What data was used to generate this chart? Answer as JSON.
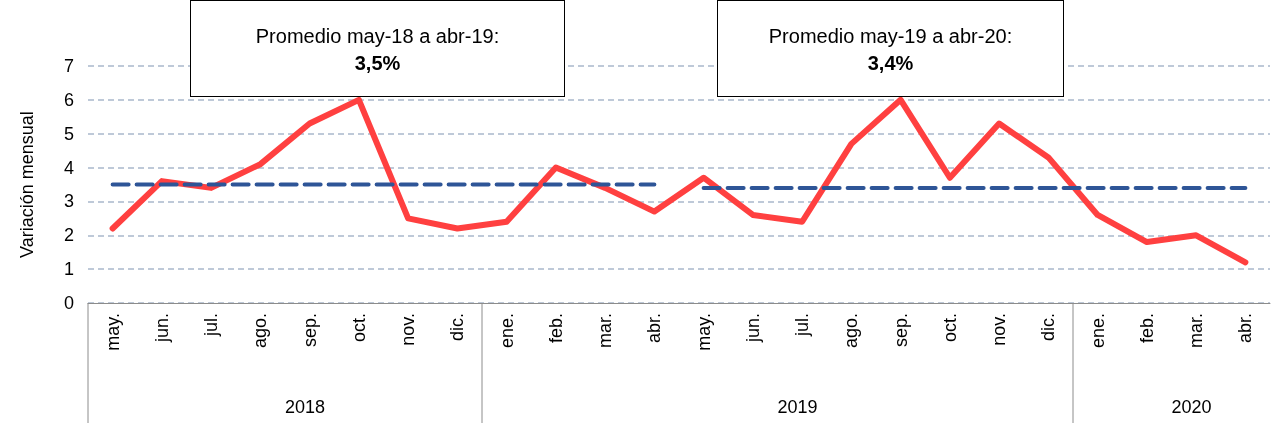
{
  "chart_data": {
    "type": "line",
    "ylabel": "Variación mensual",
    "categories": [
      "may.",
      "jun.",
      "jul.",
      "ago.",
      "sep.",
      "oct.",
      "nov.",
      "dic.",
      "ene.",
      "feb.",
      "mar.",
      "abr.",
      "may.",
      "jun.",
      "jul.",
      "ago.",
      "sep.",
      "oct.",
      "nov.",
      "dic.",
      "ene.",
      "feb.",
      "mar.",
      "abr."
    ],
    "series": [
      {
        "color": "#ff4040",
        "line_style": "solid",
        "values": [
          2.2,
          3.6,
          3.4,
          4.1,
          5.3,
          6.0,
          2.5,
          2.2,
          2.4,
          4.0,
          3.4,
          2.7,
          3.7,
          2.6,
          2.4,
          4.7,
          6.0,
          3.7,
          5.3,
          4.3,
          2.6,
          1.8,
          2.0,
          1.2
        ]
      },
      {
        "color": "#2e5597",
        "line_style": "dashed",
        "values": [
          3.5,
          3.5,
          3.5,
          3.5,
          3.5,
          3.5,
          3.5,
          3.5,
          3.5,
          3.5,
          3.5,
          3.5,
          null,
          null,
          null,
          null,
          null,
          null,
          null,
          null,
          null,
          null,
          null,
          null
        ]
      },
      {
        "color": "#2e5597",
        "line_style": "dashed",
        "values": [
          null,
          null,
          null,
          null,
          null,
          null,
          null,
          null,
          null,
          null,
          null,
          null,
          3.4,
          3.4,
          3.4,
          3.4,
          3.4,
          3.4,
          3.4,
          3.4,
          3.4,
          3.4,
          3.4,
          3.4
        ]
      }
    ],
    "ylim": [
      0,
      7
    ],
    "yticks": [
      0,
      1,
      2,
      3,
      4,
      5,
      6,
      7
    ],
    "grid": "y",
    "marker": "none",
    "annotations": [
      "Promedio may-18 a abr-19: 3,5%",
      "Promedio may-19 a abr-20: 3,4%",
      "2018",
      "2019",
      "2020"
    ]
  }
}
